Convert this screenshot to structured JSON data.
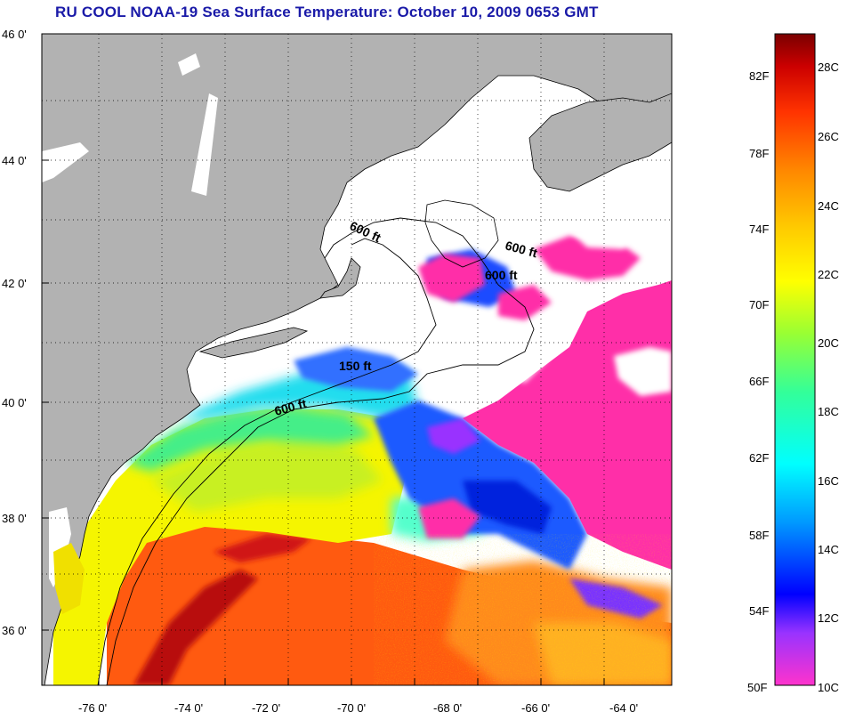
{
  "title": "RU COOL  NOAA-19  Sea Surface Temperature:  October 10, 2009 0653 GMT",
  "map": {
    "latitude_labels": [
      "46 0'",
      "44 0'",
      "42 0'",
      "40 0'",
      "38 0'",
      "36 0'"
    ],
    "longitude_labels": [
      "-76 0'",
      "-74 0'",
      "-72 0'",
      "-70 0'",
      "-68 0'",
      "-66 0'",
      "-64 0'"
    ],
    "contour_labels": [
      "600 ft",
      "600 ft",
      "600 ft",
      "150 ft",
      "600 ft"
    ],
    "colors": {
      "land": "#b2b2b2",
      "cloud": "#ffffff",
      "cold": "#ff33aa",
      "warm": "#ff3300"
    }
  },
  "colorbar": {
    "fahrenheit_labels": [
      "82F",
      "78F",
      "74F",
      "70F",
      "66F",
      "62F",
      "58F",
      "54F",
      "50F"
    ],
    "celsius_labels": [
      "28C",
      "26C",
      "24C",
      "22C",
      "20C",
      "18C",
      "16C",
      "14C",
      "12C",
      "10C"
    ],
    "range_celsius": [
      10,
      29
    ],
    "gradient_colors": [
      "#ff33cc",
      "#9933ff",
      "#0000ff",
      "#0099ff",
      "#00ffff",
      "#33ff99",
      "#99ff33",
      "#ffff00",
      "#ffcc00",
      "#ff8800",
      "#ff3300",
      "#cc0000",
      "#7a0000"
    ]
  }
}
